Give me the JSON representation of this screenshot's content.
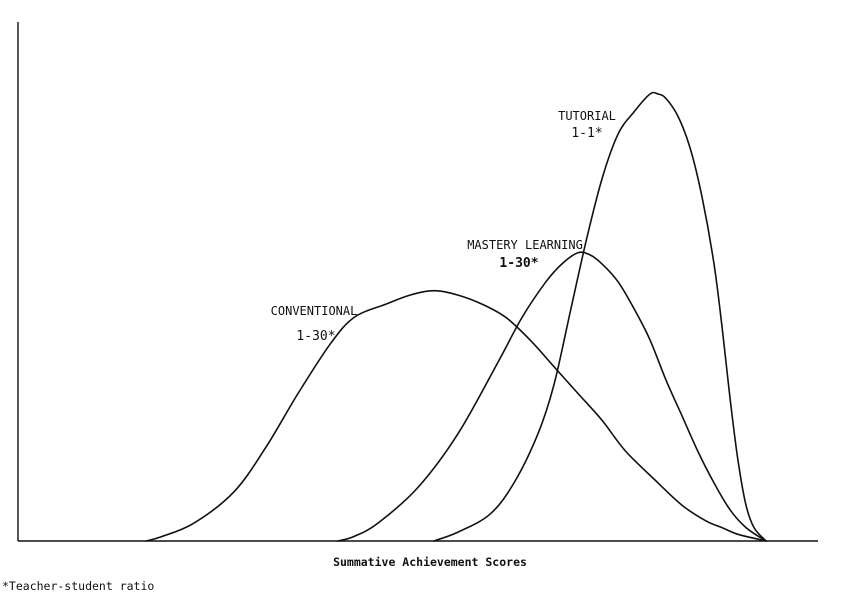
{
  "chart_data": {
    "type": "line",
    "title": "",
    "xlabel": "Summative Achievement Scores",
    "ylabel": "",
    "footnote": "*Teacher-student ratio",
    "xlim": [
      0,
      100
    ],
    "ylim": [
      0,
      100
    ],
    "x_ticks": [],
    "y_ticks": [],
    "grid": false,
    "legend": "none (curves labeled directly)",
    "series": [
      {
        "name": "CONVENTIONAL",
        "ratio": "1-30*",
        "x": [
          16,
          18,
          22,
          27,
          31,
          35,
          39,
          42,
          46,
          49,
          52,
          55,
          58,
          61,
          64,
          67,
          70,
          73,
          76,
          80,
          83,
          86,
          88,
          90,
          93.5
        ],
        "y": [
          0,
          1,
          4,
          11,
          21,
          33,
          44,
          50,
          53,
          55,
          56,
          55,
          53,
          50,
          45,
          39,
          33,
          27,
          20,
          13,
          8,
          4.5,
          3,
          1.5,
          0
        ]
      },
      {
        "name": "MASTERY LEARNING",
        "ratio": "1-30*",
        "x": [
          40,
          42,
          45,
          50,
          55,
          60,
          63,
          66,
          68,
          70,
          71.5,
          73,
          75,
          77,
          79,
          81,
          83,
          85,
          87,
          89,
          91,
          93.5
        ],
        "y": [
          0,
          1,
          4,
          12,
          24,
          40,
          50,
          58,
          62,
          64.5,
          64,
          62,
          58,
          52,
          45,
          36,
          28,
          20,
          13,
          7,
          3,
          0
        ]
      },
      {
        "name": "TUTORIAL",
        "ratio": "1-1*",
        "x": [
          52,
          55,
          59,
          62,
          65,
          67,
          69,
          71,
          73,
          75,
          77,
          79,
          80,
          81,
          82.5,
          84,
          85.5,
          87,
          88,
          89,
          90,
          91,
          92,
          93.5
        ],
        "y": [
          0,
          2,
          6,
          13,
          24,
          35,
          51,
          67,
          81,
          91,
          96,
          100,
          100,
          99,
          95,
          88,
          77,
          62,
          48,
          32,
          18,
          8,
          3,
          0
        ]
      }
    ]
  }
}
